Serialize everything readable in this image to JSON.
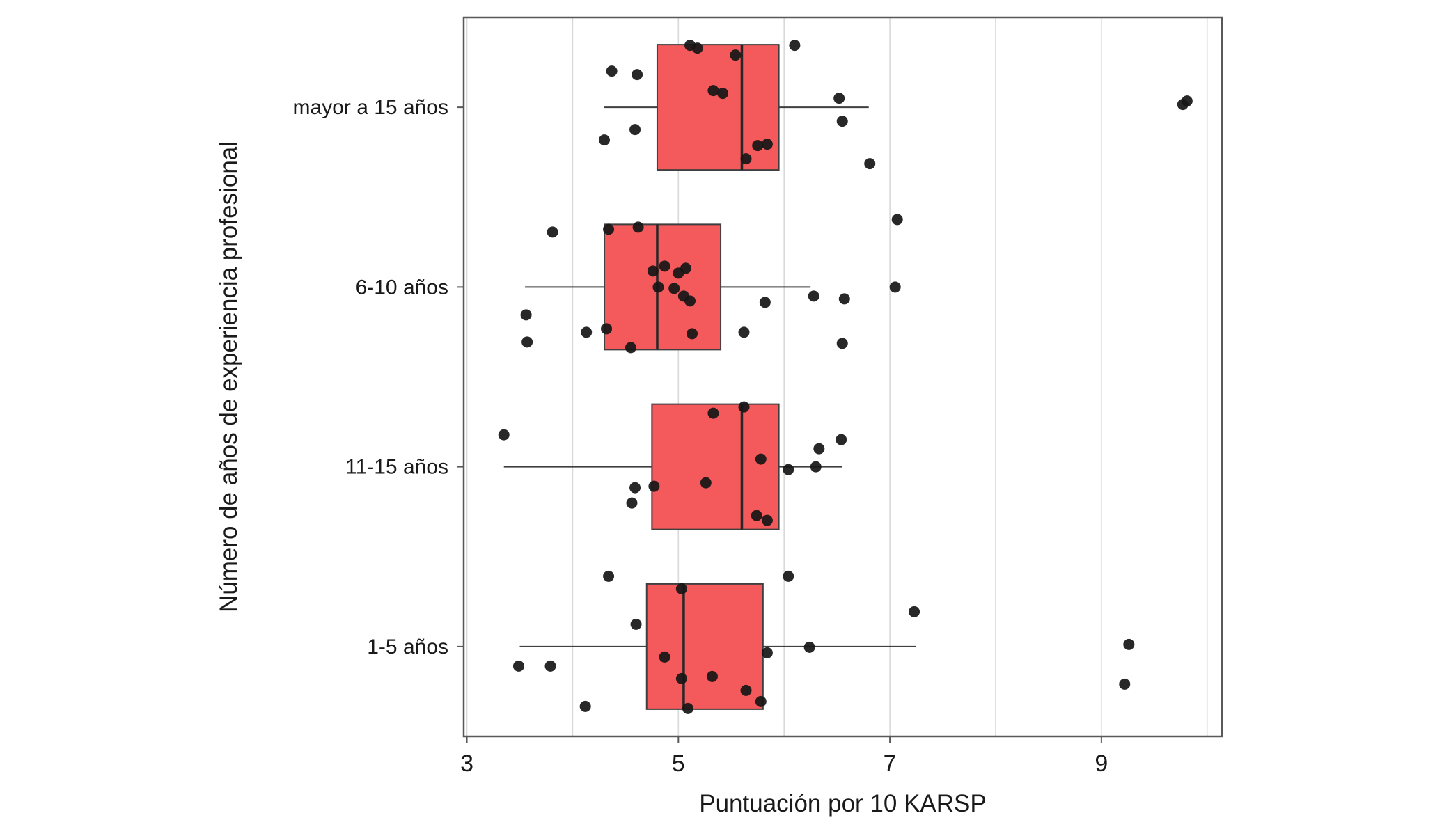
{
  "chart_data": {
    "type": "boxplot",
    "orientation": "horizontal",
    "title": "",
    "xlabel": "Puntuación por 10 KARSP",
    "ylabel": "Número de años de experiencia profesional",
    "categories": [
      "mayor a 15 años",
      "6-10 años",
      "11-15 años",
      "1-5 años"
    ],
    "xlim": [
      2.97,
      10.14
    ],
    "x_ticks": [
      3,
      5,
      7,
      9
    ],
    "x_gridlines": [
      3,
      4,
      5,
      6,
      7,
      8,
      9,
      10
    ],
    "legend": null,
    "grid": "vertical-only",
    "box_fill_color": "#f4595b",
    "box_stroke_color": "#3f3f3f",
    "median_color": "#262626",
    "point_color": "#161616",
    "grid_color": "#d9d9d9",
    "panel_border_color": "#595959",
    "boxes": [
      {
        "category": "mayor a 15 años",
        "whisker_low": 4.3,
        "q1": 4.8,
        "median": 5.6,
        "q3": 5.95,
        "whisker_high": 6.8
      },
      {
        "category": "6-10 años",
        "whisker_low": 3.55,
        "q1": 4.3,
        "median": 4.8,
        "q3": 5.4,
        "whisker_high": 6.25
      },
      {
        "category": "11-15 años",
        "whisker_low": 3.35,
        "q1": 4.75,
        "median": 5.6,
        "q3": 5.95,
        "whisker_high": 6.55
      },
      {
        "category": "1-5 años",
        "whisker_low": 3.5,
        "q1": 4.7,
        "median": 5.05,
        "q3": 5.8,
        "whisker_high": 7.25
      }
    ],
    "points": [
      {
        "category_index": 0,
        "values": [
          [
            5.11,
            -89
          ],
          [
            5.18,
            -85
          ],
          [
            6.1,
            -89
          ],
          [
            4.37,
            -52
          ],
          [
            4.61,
            -47
          ],
          [
            5.54,
            -75
          ],
          [
            5.33,
            -24
          ],
          [
            5.42,
            -20
          ],
          [
            6.52,
            -13
          ],
          [
            9.77,
            -4
          ],
          [
            9.81,
            -9
          ],
          [
            4.3,
            47
          ],
          [
            4.59,
            32
          ],
          [
            6.55,
            20
          ],
          [
            5.64,
            74
          ],
          [
            5.75,
            55
          ],
          [
            5.84,
            53
          ],
          [
            6.81,
            81
          ]
        ]
      },
      {
        "category_index": 1,
        "values": [
          [
            7.07,
            -97
          ],
          [
            3.81,
            -79
          ],
          [
            4.34,
            -83
          ],
          [
            4.62,
            -86
          ],
          [
            4.76,
            -23
          ],
          [
            4.87,
            -30
          ],
          [
            5.0,
            -20
          ],
          [
            5.07,
            -27
          ],
          [
            4.81,
            0
          ],
          [
            4.96,
            2
          ],
          [
            5.05,
            13
          ],
          [
            5.11,
            20
          ],
          [
            5.82,
            22
          ],
          [
            6.28,
            13
          ],
          [
            6.57,
            17
          ],
          [
            3.56,
            40
          ],
          [
            4.13,
            65
          ],
          [
            4.32,
            60
          ],
          [
            5.13,
            67
          ],
          [
            5.62,
            65
          ],
          [
            4.55,
            87
          ],
          [
            3.57,
            79
          ],
          [
            6.55,
            81
          ],
          [
            7.05,
            0
          ]
        ]
      },
      {
        "category_index": 2,
        "values": [
          [
            5.33,
            -77
          ],
          [
            5.62,
            -86
          ],
          [
            3.35,
            -46
          ],
          [
            6.54,
            -39
          ],
          [
            6.33,
            -26
          ],
          [
            5.78,
            -11
          ],
          [
            6.04,
            4
          ],
          [
            6.3,
            0
          ],
          [
            5.26,
            23
          ],
          [
            4.59,
            30
          ],
          [
            4.77,
            28
          ],
          [
            4.56,
            52
          ],
          [
            5.74,
            70
          ],
          [
            5.84,
            77
          ]
        ]
      },
      {
        "category_index": 3,
        "values": [
          [
            4.34,
            -101
          ],
          [
            6.04,
            -101
          ],
          [
            5.03,
            -83
          ],
          [
            7.23,
            -50
          ],
          [
            4.6,
            -32
          ],
          [
            5.84,
            9
          ],
          [
            6.24,
            1
          ],
          [
            9.26,
            -3
          ],
          [
            4.87,
            15
          ],
          [
            3.49,
            28
          ],
          [
            3.79,
            28
          ],
          [
            5.03,
            46
          ],
          [
            5.32,
            43
          ],
          [
            5.64,
            63
          ],
          [
            9.22,
            54
          ],
          [
            4.12,
            86
          ],
          [
            5.78,
            79
          ],
          [
            5.09,
            89
          ]
        ]
      }
    ]
  }
}
